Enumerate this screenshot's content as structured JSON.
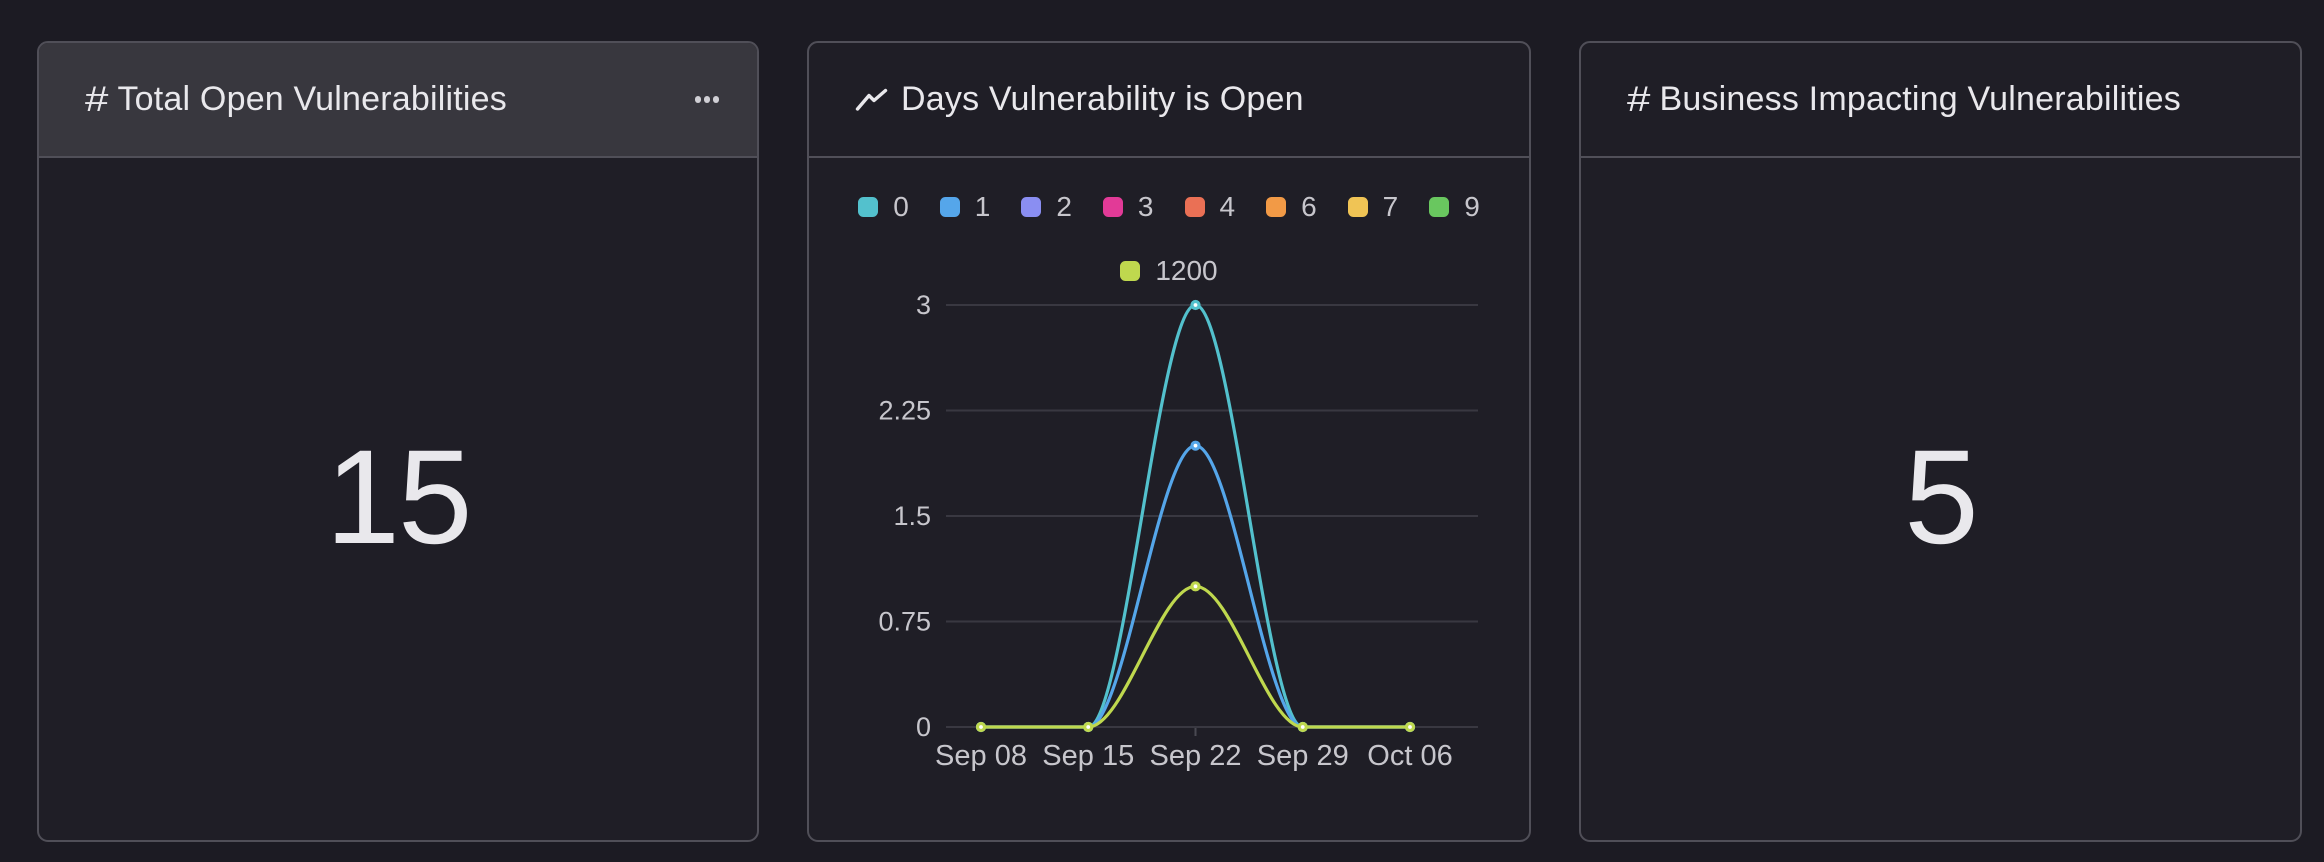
{
  "page": {
    "bg": "#1c1b23",
    "panel_bg": "#1f1e26",
    "panel_border": "#504f58",
    "header_bg": "#38373e",
    "accent_text": "#e9e8ec",
    "muted_text": "#c7c6cc"
  },
  "panels": {
    "total_open": {
      "icon": "hash",
      "title": "Total Open Vulnerabilities",
      "value": "15",
      "menu_icon": "ellipsis"
    },
    "days_open": {
      "icon": "trend-line",
      "title": "Days Vulnerability is Open"
    },
    "business_impacting": {
      "icon": "hash",
      "title": "Business Impacting Vulnerabilities",
      "value": "5"
    }
  },
  "chart_data": {
    "type": "line",
    "title": "Days Vulnerability is Open",
    "x": [
      "Sep 08",
      "Sep 15",
      "Sep 22",
      "Sep 29",
      "Oct 06"
    ],
    "y_ticks": [
      "0",
      "0.75",
      "1.5",
      "2.25",
      "3"
    ],
    "ylim": [
      0,
      3
    ],
    "grid": true,
    "legend_position": "top",
    "line_style": "smooth-monotone",
    "series": [
      {
        "name": "0",
        "color": "#53c1cd",
        "values": [
          0,
          0,
          3,
          0,
          0
        ]
      },
      {
        "name": "1",
        "color": "#55a6ea",
        "values": [
          0,
          0,
          2,
          0,
          0
        ]
      },
      {
        "name": "2",
        "color": "#8a8ef2",
        "values": null
      },
      {
        "name": "3",
        "color": "#e23a97",
        "values": null
      },
      {
        "name": "4",
        "color": "#ea7055",
        "values": null
      },
      {
        "name": "6",
        "color": "#f29a46",
        "values": null
      },
      {
        "name": "7",
        "color": "#f0c455",
        "values": null
      },
      {
        "name": "9",
        "color": "#69c75f",
        "values": null
      },
      {
        "name": "1200",
        "color": "#bfd84e",
        "values": [
          0,
          0,
          1,
          0,
          0
        ]
      }
    ]
  }
}
